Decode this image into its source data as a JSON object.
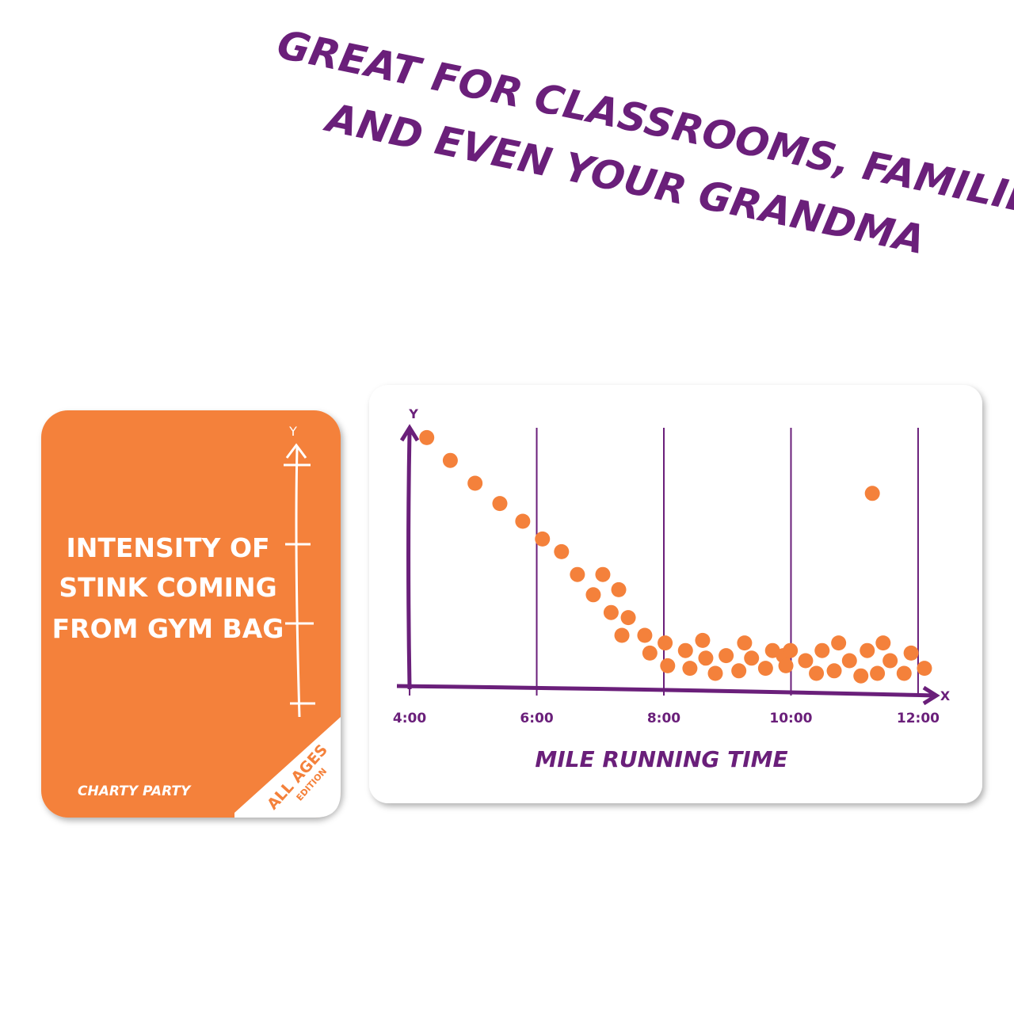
{
  "headline": {
    "lines": [
      "GREAT FOR CLASSROOMS, FAMILIES,",
      "AND EVEN YOUR GRANDMA"
    ]
  },
  "card": {
    "axis_letter": "Y",
    "prompt_lines": [
      "INTENSITY OF",
      "STINK COMING",
      "FROM GYM BAG"
    ],
    "brand": "CHARTY PARTY",
    "edition_lines": [
      "ALL AGES",
      "EDITION"
    ]
  },
  "chart_data": {
    "type": "scatter",
    "x_label": "MILE RUNNING TIME",
    "x_arrow_label": "X",
    "y_arrow_label": "Y",
    "color": "#f4813b",
    "x": [
      4.27,
      4.64,
      5.03,
      5.42,
      5.78,
      6.09,
      6.39,
      6.64,
      7.04,
      6.89,
      7.29,
      7.17,
      7.44,
      7.34,
      7.7,
      7.78,
      8.02,
      8.06,
      8.34,
      8.41,
      8.61,
      8.66,
      8.81,
      8.98,
      9.18,
      9.27,
      9.38,
      9.6,
      9.71,
      9.88,
      9.99,
      9.92,
      10.23,
      10.4,
      10.49,
      10.68,
      10.75,
      10.92,
      11.1,
      11.2,
      11.36,
      11.45,
      11.56,
      11.78,
      11.89,
      12.1,
      11.28
    ],
    "values": [
      9.8,
      8.9,
      8.0,
      7.2,
      6.5,
      5.8,
      5.3,
      4.4,
      4.4,
      3.6,
      3.8,
      2.9,
      2.7,
      2.0,
      2.0,
      1.3,
      1.7,
      0.8,
      1.4,
      0.7,
      1.8,
      1.1,
      0.5,
      1.2,
      0.6,
      1.7,
      1.1,
      0.7,
      1.4,
      1.2,
      1.4,
      0.8,
      1.0,
      0.5,
      1.4,
      0.6,
      1.7,
      1.0,
      0.4,
      1.4,
      0.5,
      1.7,
      1.0,
      0.5,
      1.3,
      0.7,
      7.6
    ],
    "xlim": [
      3.8,
      12.25
    ],
    "ylim": [
      0,
      10
    ],
    "xticks": [
      {
        "value": 4,
        "label": "4:00"
      },
      {
        "value": 6,
        "label": "6:00"
      },
      {
        "value": 8,
        "label": "8:00"
      },
      {
        "value": 10,
        "label": "10:00"
      },
      {
        "value": 12,
        "label": "12:00"
      }
    ],
    "grid": true
  }
}
